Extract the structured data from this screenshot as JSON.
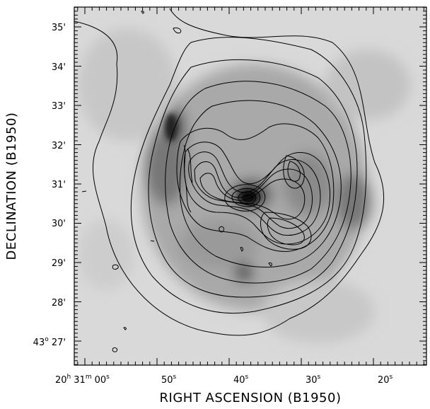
{
  "figure": {
    "x_axis_title": "RIGHT ASCENSION (B1950)",
    "y_axis_title": "DECLINATION (B1950)",
    "colors": {
      "frame": "#000000",
      "contour": "#000000",
      "background_grey": "#cfcfcf"
    }
  },
  "x_ticks": [
    {
      "hour": "20",
      "minute": "31",
      "sec": "00"
    },
    {
      "sec": "50"
    },
    {
      "sec": "40"
    },
    {
      "sec": "30"
    },
    {
      "sec": "20"
    }
  ],
  "x_tick_units": {
    "hour": "h",
    "minute": "m",
    "sec": "s"
  },
  "y_ticks": [
    {
      "deg": "43",
      "min": "27'"
    },
    {
      "min": "28'"
    },
    {
      "min": "29'"
    },
    {
      "min": "30'"
    },
    {
      "min": "31'"
    },
    {
      "min": "32'"
    },
    {
      "min": "33'"
    },
    {
      "min": "34'"
    },
    {
      "min": "35'"
    }
  ],
  "y_tick_units": {
    "deg": "o"
  }
}
